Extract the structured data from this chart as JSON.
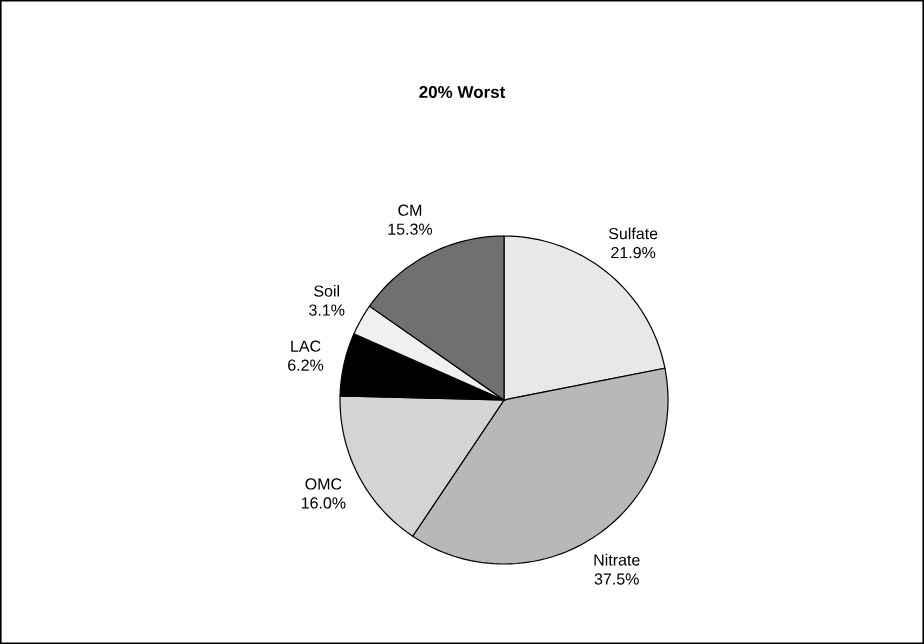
{
  "chart_data": {
    "type": "pie",
    "title": "20% Worst",
    "categories": [
      "Sulfate",
      "Nitrate",
      "OMC",
      "LAC",
      "Soil",
      "CM"
    ],
    "values": [
      21.9,
      37.5,
      16.0,
      6.2,
      3.1,
      15.3
    ],
    "colors": [
      "#e8e8e8",
      "#b8b8b8",
      "#d4d4d4",
      "#000000",
      "#f0f0f0",
      "#707070"
    ],
    "value_labels": [
      "21.9%",
      "37.5%",
      "16.0%",
      "6.2%",
      "3.1%",
      "15.3%"
    ]
  }
}
